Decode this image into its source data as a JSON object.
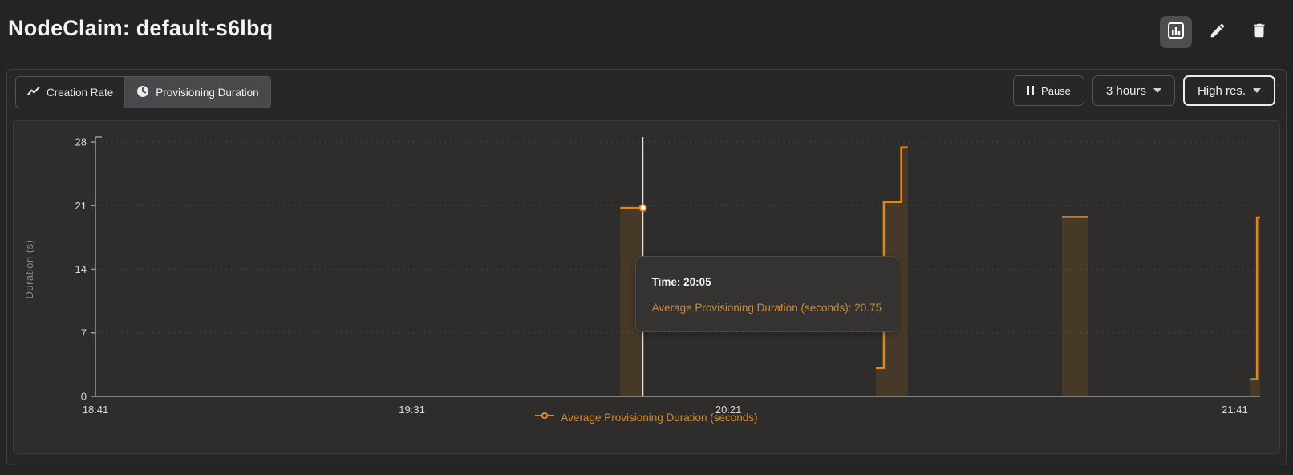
{
  "header": {
    "title": "NodeClaim: default-s6lbq"
  },
  "toolbar": {
    "tabs": [
      {
        "label": "Creation Rate",
        "icon": "trend-icon",
        "active": false
      },
      {
        "label": "Provisioning Duration",
        "icon": "clock-icon",
        "active": true
      }
    ],
    "pause_label": "Pause",
    "range_label": "3 hours",
    "resolution_label": "High res."
  },
  "tooltip": {
    "time_line": "Time: 20:05",
    "value_line": "Average Provisioning Duration (seconds): 20.75"
  },
  "chart_data": {
    "type": "area",
    "subtype": "step-area-with-gaps",
    "title": "",
    "xlabel": "",
    "ylabel": "Duration (s)",
    "series_name": "Average Provisioning Duration (seconds)",
    "x_axis": {
      "tick_labels": [
        "18:41",
        "19:31",
        "20:21",
        "21:41"
      ],
      "tick_minutes": [
        0,
        50,
        100,
        180
      ],
      "range_minutes": [
        0,
        184
      ]
    },
    "y_axis": {
      "ticks": [
        0,
        7,
        14,
        21,
        28
      ],
      "range": [
        0,
        28
      ]
    },
    "segments": [
      [
        [
          82.9,
          20.75
        ],
        [
          86.5,
          20.75
        ]
      ],
      [
        [
          123.3,
          3.1
        ],
        [
          124.55,
          3.1
        ],
        [
          124.55,
          21.4
        ],
        [
          127.3,
          21.4
        ],
        [
          127.3,
          27.4
        ],
        [
          128.35,
          27.4
        ]
      ],
      [
        [
          152.7,
          19.75
        ],
        [
          156.8,
          19.75
        ]
      ],
      [
        [
          182.5,
          1.9
        ],
        [
          183.5,
          1.9
        ],
        [
          183.5,
          19.7
        ],
        [
          184,
          19.7
        ]
      ]
    ],
    "hover": {
      "x_min": 86.5,
      "value": 20.75,
      "time": "20:05"
    },
    "grid": "horizontal-dashed",
    "legend_position": "bottom-center",
    "colors": {
      "line": "#e0861f",
      "fill": "rgba(224,134,31,0.14)",
      "legend_text": "#cf8a33",
      "crosshair": "#e0e0e0",
      "axis": "#9c9c9c",
      "tick_text": "#d8d8d8"
    }
  }
}
